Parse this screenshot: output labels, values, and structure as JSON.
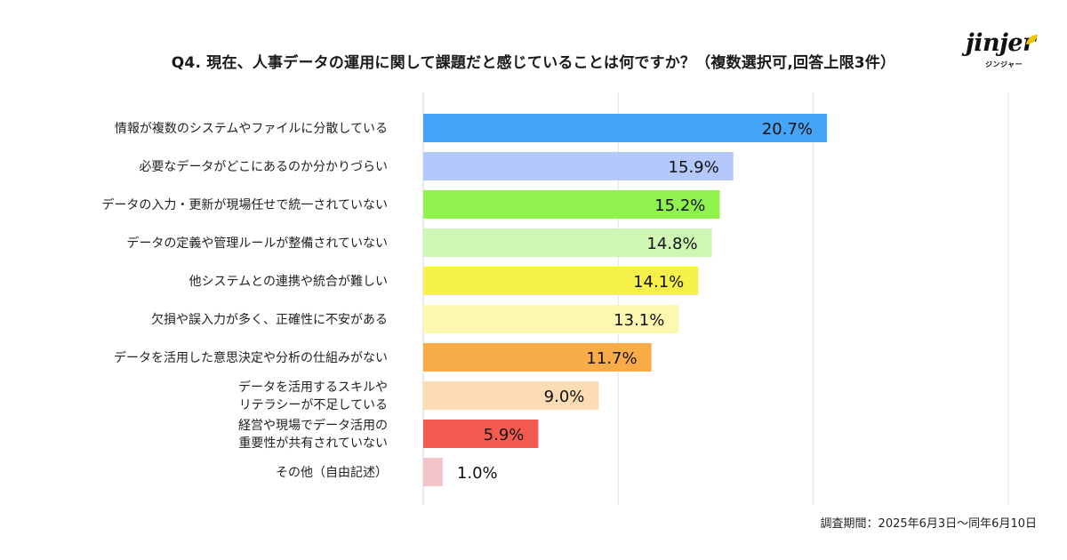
{
  "title": "Q4. 現在、人事データの運用に関して課題だと感じていることは何ですか？（複数選択可,回答上限3件）",
  "logo": {
    "word": "jinjer",
    "kana": "ジンジャー"
  },
  "period": "調査期間：2025年6月3日〜同年6月10日",
  "chart_data": {
    "type": "bar",
    "orientation": "horizontal",
    "title": "Q4. 現在、人事データの運用に関して課題だと感じていることは何ですか？（複数選択可,回答上限3件）",
    "categories": [
      "情報が複数のシステムやファイルに分散している",
      "必要なデータがどこにあるのか分かりづらい",
      "データの入力・更新が現場任せで統一されていない",
      "データの定義や管理ルールが整備されていない",
      "他システムとの連携や統合が難しい",
      "欠損や誤入力が多く、正確性に不安がある",
      "データを活用した意思決定や分析の仕組みがない",
      "データを活用するスキルや\nリテラシーが不足している",
      "経営や現場でデータ活用の\n重要性が共有されていない",
      "その他（自由記述）"
    ],
    "values": [
      20.7,
      15.9,
      15.2,
      14.8,
      14.1,
      13.1,
      11.7,
      9.0,
      5.9,
      1.0
    ],
    "value_labels": [
      "20.7%",
      "15.9%",
      "15.2%",
      "14.8%",
      "14.1%",
      "13.1%",
      "11.7%",
      "9.0%",
      "5.9%",
      "1.0%"
    ],
    "colors": [
      "#46a4f6",
      "#b4c8fb",
      "#8ff24d",
      "#cff7b4",
      "#f6f04a",
      "#fcf8b0",
      "#f8ac48",
      "#fcdcb4",
      "#f45b50",
      "#f3c5c8"
    ],
    "xlim": [
      0,
      30
    ],
    "grid": true,
    "xlabel": "",
    "ylabel": ""
  }
}
